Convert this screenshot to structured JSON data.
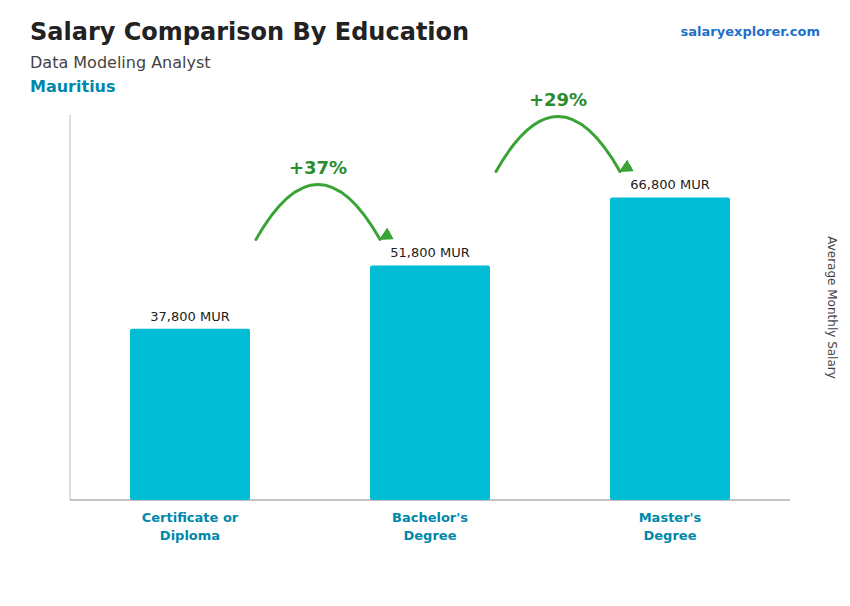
{
  "chart_data": {
    "type": "bar",
    "title": "Salary Comparison By Education",
    "subtitle": "Data Modeling Analyst",
    "y_label": "Average Monthly Salary",
    "annotations": [
      "Mauritius",
      "+37%",
      "+29%",
      "salaryexplorer.com"
    ],
    "categories": [
      "Certificate or\nDiploma",
      "Bachelor's\nDegree",
      "Master's\nDegree"
    ],
    "values": [
      37800,
      51800,
      66800
    ],
    "value_labels": [
      "37,800 MUR",
      "51,800 MUR",
      "66,800 MUR"
    ],
    "color": "#00bcd4",
    "ylim": [
      0,
      85000
    ],
    "data_labels": true,
    "tick_labels": false,
    "grid": false
  }
}
